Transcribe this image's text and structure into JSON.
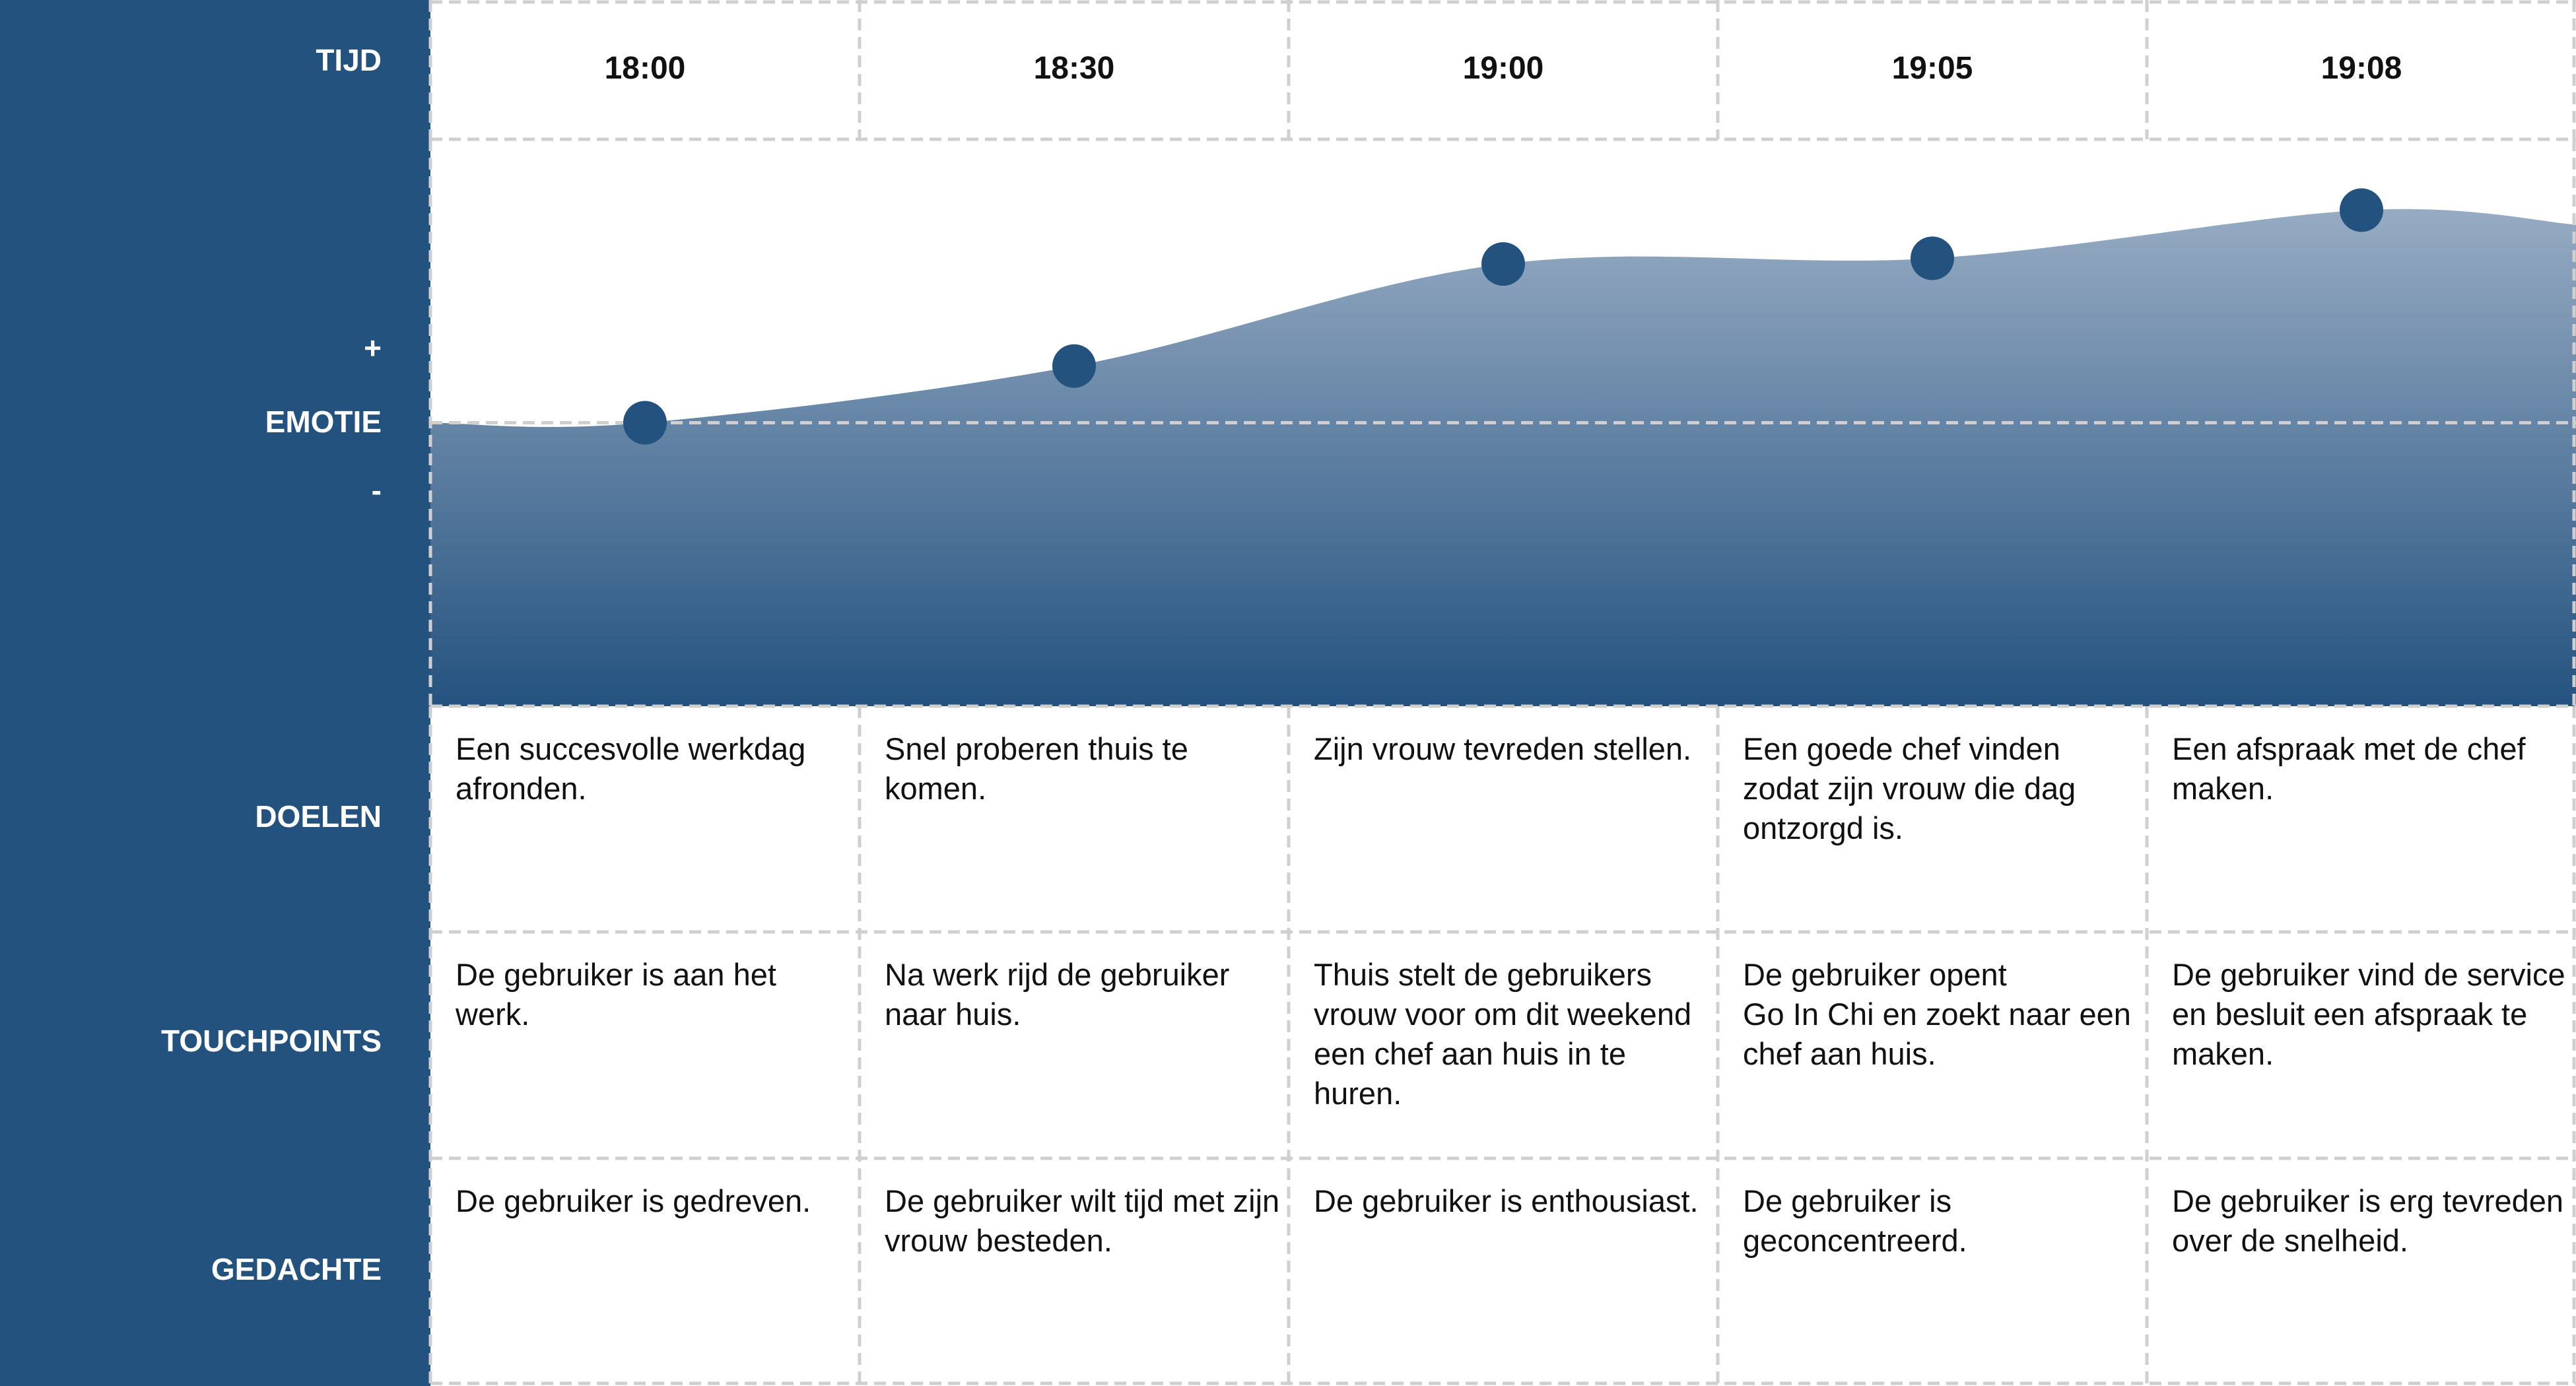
{
  "row_labels": {
    "time": "TIJD",
    "emotion": "EMOTIE",
    "plus": "+",
    "minus": "-",
    "goals": "DOELEN",
    "touchpoints": "TOUCHPOINTS",
    "thoughts": "GEDACHTE"
  },
  "columns": [
    {
      "time": "18:00",
      "goal": "Een succesvolle werkdag afronden.",
      "touchpoint": "De gebruiker is aan het werk.",
      "thought": "De gebruiker is gedreven."
    },
    {
      "time": "18:30",
      "goal": "Snel proberen thuis te komen.",
      "touchpoint": "Na werk rijd de gebruiker naar huis.",
      "thought": "De gebruiker wilt tijd met zijn vrouw besteden."
    },
    {
      "time": "19:00",
      "goal": "Zijn vrouw tevreden stellen.",
      "touchpoint": "Thuis stelt de gebruikers vrouw voor om dit weekend een chef aan huis in te huren.",
      "thought": "De gebruiker is enthousiast."
    },
    {
      "time": "19:05",
      "goal": "Een goede chef vinden zodat zijn vrouw die dag ontzorgd is.",
      "touchpoint": "De gebruiker opent\nGo In Chi en zoekt naar een chef aan huis.",
      "thought": "De gebruiker is geconcentreerd."
    },
    {
      "time": "19:08",
      "goal": "Een afspraak met de chef maken.",
      "touchpoint": "De gebruiker vind de service en besluit een afspraak te maken.",
      "thought": "De gebruiker is erg tevreden over de snelheid."
    }
  ],
  "emotion": {
    "values": [
      0,
      20,
      56,
      58,
      75
    ],
    "ylim": [
      -100,
      100
    ]
  }
}
